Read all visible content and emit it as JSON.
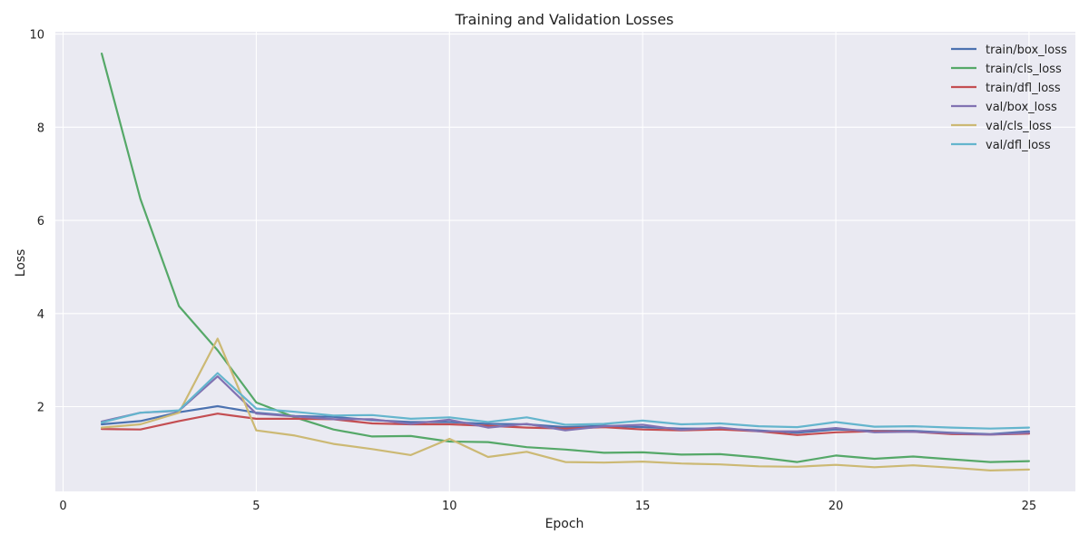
{
  "chart_data": {
    "type": "line",
    "title": "Training and Validation Losses",
    "xlabel": "Epoch",
    "ylabel": "Loss",
    "xlim": [
      -0.2,
      26.2
    ],
    "ylim": [
      0.18,
      10.05
    ],
    "xticks": [
      0,
      5,
      10,
      15,
      20,
      25
    ],
    "yticks": [
      2,
      4,
      6,
      8,
      10
    ],
    "grid": true,
    "legend_position": "top-right",
    "x": [
      1,
      2,
      3,
      4,
      5,
      6,
      7,
      8,
      9,
      10,
      11,
      12,
      13,
      14,
      15,
      16,
      17,
      18,
      19,
      20,
      21,
      22,
      23,
      24,
      25
    ],
    "series": [
      {
        "name": "train/box_loss",
        "color": "#4c72b0",
        "values": [
          1.62,
          1.69,
          1.88,
          2.01,
          1.87,
          1.8,
          1.78,
          1.71,
          1.67,
          1.67,
          1.63,
          1.62,
          1.56,
          1.59,
          1.56,
          1.53,
          1.53,
          1.49,
          1.44,
          1.51,
          1.48,
          1.48,
          1.44,
          1.41,
          1.47
        ]
      },
      {
        "name": "train/cls_loss",
        "color": "#55a868",
        "values": [
          9.58,
          6.46,
          4.16,
          3.21,
          2.09,
          1.77,
          1.51,
          1.36,
          1.37,
          1.25,
          1.24,
          1.13,
          1.08,
          1.01,
          1.02,
          0.97,
          0.98,
          0.91,
          0.81,
          0.95,
          0.88,
          0.93,
          0.87,
          0.81,
          0.83
        ]
      },
      {
        "name": "train/dfl_loss",
        "color": "#c44e52",
        "values": [
          1.52,
          1.51,
          1.69,
          1.85,
          1.74,
          1.74,
          1.73,
          1.64,
          1.62,
          1.62,
          1.59,
          1.55,
          1.53,
          1.56,
          1.51,
          1.49,
          1.51,
          1.47,
          1.39,
          1.45,
          1.47,
          1.46,
          1.41,
          1.4,
          1.42
        ]
      },
      {
        "name": "val/box_loss",
        "color": "#8172b2",
        "values": [
          1.68,
          1.87,
          1.91,
          2.65,
          1.85,
          1.79,
          1.73,
          1.73,
          1.63,
          1.72,
          1.55,
          1.63,
          1.49,
          1.58,
          1.61,
          1.5,
          1.55,
          1.47,
          1.47,
          1.54,
          1.45,
          1.46,
          1.43,
          1.4,
          1.44
        ]
      },
      {
        "name": "val/cls_loss",
        "color": "#ccb974",
        "values": [
          1.55,
          1.62,
          1.87,
          3.46,
          1.49,
          1.38,
          1.2,
          1.09,
          0.96,
          1.31,
          0.92,
          1.03,
          0.81,
          0.8,
          0.82,
          0.78,
          0.76,
          0.72,
          0.71,
          0.75,
          0.7,
          0.74,
          0.69,
          0.63,
          0.65
        ]
      },
      {
        "name": "val/dfl_loss",
        "color": "#64b5cd",
        "values": [
          1.66,
          1.87,
          1.92,
          2.72,
          1.96,
          1.89,
          1.81,
          1.82,
          1.74,
          1.77,
          1.67,
          1.77,
          1.61,
          1.63,
          1.7,
          1.62,
          1.64,
          1.58,
          1.56,
          1.67,
          1.57,
          1.58,
          1.55,
          1.53,
          1.55
        ]
      }
    ]
  },
  "colors": {
    "plot_background": "#eaeaf2",
    "grid": "#ffffff",
    "text": "#222222"
  }
}
